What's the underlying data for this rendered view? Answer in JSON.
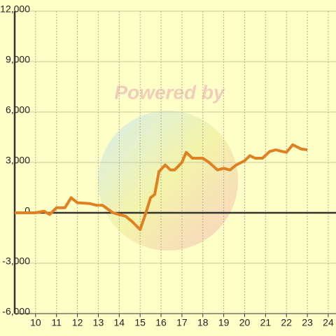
{
  "chart_data": {
    "type": "line",
    "watermark": "Powered by",
    "x": [
      9,
      10,
      10.4,
      10.67,
      11,
      11.4,
      11.7,
      12,
      12.6,
      12.9,
      13.2,
      13.7,
      14,
      14.3,
      14.6,
      15,
      15.25,
      15.5,
      15.7,
      15.9,
      16.2,
      16.45,
      16.65,
      17,
      17.2,
      17.5,
      18,
      18.3,
      18.7,
      19,
      19.3,
      19.6,
      20,
      20.25,
      20.5,
      20.85,
      21.2,
      21.5,
      21.8,
      22,
      22.3,
      22.7,
      23
    ],
    "series": [
      {
        "color": "#e08020",
        "values": [
          0,
          0,
          100,
          -100,
          300,
          300,
          900,
          600,
          550,
          450,
          450,
          0,
          -100,
          -200,
          -500,
          -1000,
          -100,
          900,
          1100,
          2450,
          2850,
          2550,
          2550,
          3000,
          3600,
          3250,
          3250,
          3000,
          2550,
          2650,
          2550,
          2850,
          3100,
          3400,
          3250,
          3250,
          3650,
          3750,
          3650,
          3600,
          4050,
          3800,
          3750
        ]
      }
    ],
    "xlim": [
      9,
      24.37
    ],
    "xticks": [
      10,
      11,
      12,
      13,
      14,
      15,
      16,
      17,
      18,
      19,
      20,
      21,
      22,
      23,
      24
    ],
    "ylim": [
      -6000,
      12000
    ],
    "yticks": [
      {
        "value": -6000,
        "label": "-6,000"
      },
      {
        "value": -3000,
        "label": "-3,000"
      },
      0,
      {
        "value": 3000,
        "label": "3,000"
      },
      {
        "value": 6000,
        "label": "6,000"
      },
      {
        "value": 9000,
        "label": "9,000"
      },
      {
        "value": 12000,
        "label": "12,000"
      }
    ],
    "grid": true
  }
}
